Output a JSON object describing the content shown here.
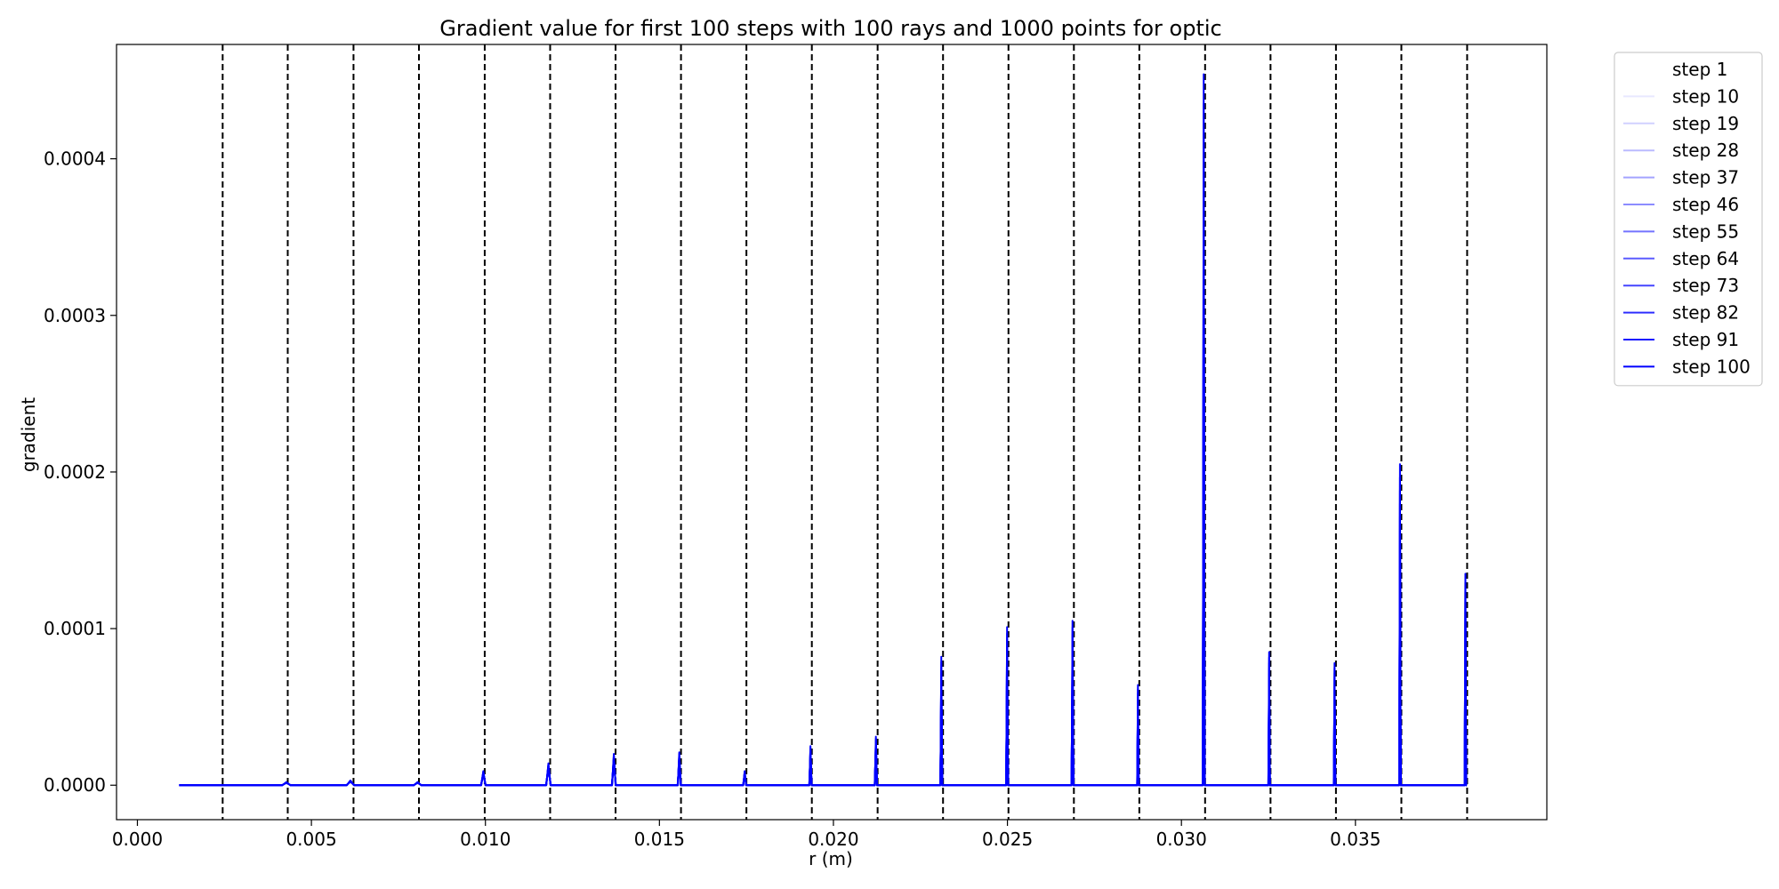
{
  "chart_data": {
    "type": "line",
    "title": "Gradient value for first 100 steps with 100 rays and 1000 points for optic",
    "xlabel": "r (m)",
    "ylabel": "gradient",
    "xlim": [
      -0.0006,
      0.0405
    ],
    "ylim": [
      -2.2e-05,
      0.000473
    ],
    "xticks": [
      0.0,
      0.005,
      0.01,
      0.015,
      0.02,
      0.025,
      0.03,
      0.035
    ],
    "xtick_labels": [
      "0.000",
      "0.005",
      "0.010",
      "0.015",
      "0.020",
      "0.025",
      "0.030",
      "0.035"
    ],
    "yticks": [
      0.0,
      0.0001,
      0.0002,
      0.0003,
      0.0004
    ],
    "ytick_labels": [
      "0.0000",
      "0.0001",
      "0.0002",
      "0.0003",
      "0.0004"
    ],
    "x_range": [
      0.0012,
      0.0382
    ],
    "grid": false,
    "legend_position": "outside upper right",
    "line_color": "#0000ff",
    "boundary_line_color": "#000000",
    "boundary_style": "dashed",
    "boundaries": [
      0.00245,
      0.00432,
      0.00621,
      0.00809,
      0.00998,
      0.01186,
      0.01374,
      0.01562,
      0.0175,
      0.01938,
      0.02127,
      0.02315,
      0.02503,
      0.02691,
      0.02879,
      0.03068,
      0.03256,
      0.03444,
      0.03632,
      0.03821
    ],
    "series": [
      {
        "name": "step 1",
        "opacity": 0.0
      },
      {
        "name": "step 10",
        "opacity": 0.09
      },
      {
        "name": "step 19",
        "opacity": 0.18
      },
      {
        "name": "step 28",
        "opacity": 0.27
      },
      {
        "name": "step 37",
        "opacity": 0.36
      },
      {
        "name": "step 46",
        "opacity": 0.45
      },
      {
        "name": "step 55",
        "opacity": 0.55
      },
      {
        "name": "step 64",
        "opacity": 0.64
      },
      {
        "name": "step 73",
        "opacity": 0.73
      },
      {
        "name": "step 82",
        "opacity": 0.82
      },
      {
        "name": "step 91",
        "opacity": 0.91
      },
      {
        "name": "step 100",
        "opacity": 1.0
      }
    ],
    "peaks": [
      {
        "x": 0.00428,
        "y": 2e-06,
        "width": 0.00022
      },
      {
        "x": 0.00612,
        "y": 3e-06,
        "width": 0.0002
      },
      {
        "x": 0.00805,
        "y": 2e-06,
        "width": 0.0002
      },
      {
        "x": 0.00994,
        "y": 9e-06,
        "width": 0.00012
      },
      {
        "x": 0.01181,
        "y": 1.4e-05,
        "width": 0.00012
      },
      {
        "x": 0.01369,
        "y": 2e-05,
        "width": 0.0001
      },
      {
        "x": 0.01557,
        "y": 2.1e-05,
        "width": 8e-05
      },
      {
        "x": 0.01745,
        "y": 9e-06,
        "width": 8e-05
      },
      {
        "x": 0.01934,
        "y": 2.5e-05,
        "width": 6e-05
      },
      {
        "x": 0.02122,
        "y": 3.1e-05,
        "width": 6e-05
      },
      {
        "x": 0.0231,
        "y": 8.2e-05,
        "width": 5e-05
      },
      {
        "x": 0.02499,
        "y": 0.000101,
        "width": 5e-05
      },
      {
        "x": 0.02687,
        "y": 0.000105,
        "width": 5e-05
      },
      {
        "x": 0.02875,
        "y": 6.4e-05,
        "width": 4e-05
      },
      {
        "x": 0.03064,
        "y": 0.000454,
        "width": 5e-05
      },
      {
        "x": 0.03252,
        "y": 8.5e-05,
        "width": 4e-05
      },
      {
        "x": 0.0344,
        "y": 7.8e-05,
        "width": 4e-05
      },
      {
        "x": 0.03628,
        "y": 0.000205,
        "width": 4e-05
      },
      {
        "x": 0.03816,
        "y": 0.000135,
        "width": 4e-05
      }
    ]
  }
}
